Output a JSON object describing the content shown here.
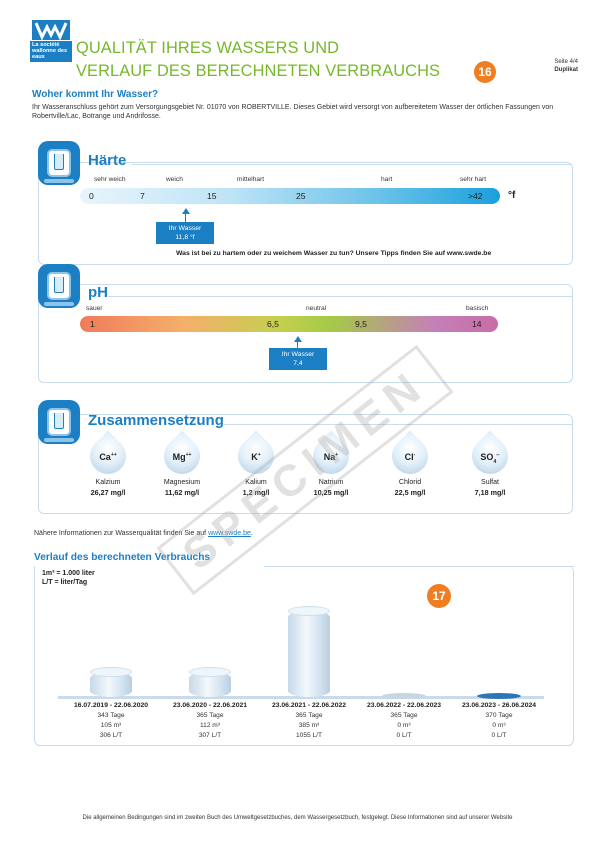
{
  "header": {
    "logo_text": "La société wallonne des eaux",
    "title_line1": "QUALITÄT IHRES WASSERS UND",
    "title_line2": "VERLAUF DES BERECHNETEN VERBRAUCHS",
    "badge": "16",
    "page": "Seite 4/4",
    "copy": "Duplikat"
  },
  "intro": {
    "heading": "Woher kommt Ihr Wasser?",
    "text": "Ihr Wasseranschluss gehört zum Versorgungsgebiet Nr. 01070 von ROBERTVILLE. Dieses Gebiet wird versorgt von aufbereitetem Wasser der örtlichen Fassungen von Robertville/Lac, Botrange und Andrifosse."
  },
  "haerte": {
    "title": "Härte",
    "labels": [
      "sehr weich",
      "weich",
      "mittelhart",
      "hart",
      "sehr hart"
    ],
    "numbers": [
      "0",
      "7",
      "15",
      "25",
      ">42"
    ],
    "unit": "°f",
    "marker_line1": "Ihr Wasser",
    "marker_line2": "11,8 °f",
    "tip": "Was ist bei zu hartem oder zu weichem Wasser zu tun? Unsere Tipps finden Sie auf www.swde.be"
  },
  "ph": {
    "title": "pH",
    "labels": [
      "sauer",
      "neutral",
      "basisch"
    ],
    "numbers": [
      "1",
      "6,5",
      "9,5",
      "14"
    ],
    "marker_line1": "Ihr Wasser",
    "marker_line2": "7,4"
  },
  "zus": {
    "title": "Zusammensetzung",
    "items": [
      {
        "sym": "Ca",
        "sup": "++",
        "name": "Kalzium",
        "value": "26,27 mg/l"
      },
      {
        "sym": "Mg",
        "sup": "++",
        "name": "Magnesium",
        "value": "11,62 mg/l"
      },
      {
        "sym": "K",
        "sup": "+",
        "name": "Kalium",
        "value": "1,2 mg/l"
      },
      {
        "sym": "Na",
        "sup": "+",
        "name": "Natrium",
        "value": "10,25 mg/l"
      },
      {
        "sym": "Cl",
        "sup": "-",
        "name": "Chlorid",
        "value": "22,5 mg/l"
      },
      {
        "sym": "SO",
        "sub": "4",
        "sup": "--",
        "name": "Sulfat",
        "value": "7,18 mg/l"
      }
    ]
  },
  "more": {
    "text": "Nähere Informationen zur Wasserqualität finden Sie auf ",
    "link": "www.swde.be",
    "tail": "."
  },
  "verlauf": {
    "title": "Verlauf des berechneten Verbrauchs",
    "unit_line1": "1m³ = 1.000 liter",
    "unit_line2": "L/T = liter/Tag",
    "badge": "17",
    "periods": [
      {
        "period": "16.07.2019 - 22.06.2020",
        "tage": "343 Tage",
        "m3": "105 m³",
        "lt": "306 L/T",
        "value": 306
      },
      {
        "period": "23.06.2020 - 22.06.2021",
        "tage": "365 Tage",
        "m3": "112 m³",
        "lt": "307 L/T",
        "value": 307
      },
      {
        "period": "23.06.2021 - 22.06.2022",
        "tage": "365 Tage",
        "m3": "385 m³",
        "lt": "1055 L/T",
        "value": 1055
      },
      {
        "period": "23.06.2022 - 22.06.2023",
        "tage": "365 Tage",
        "m3": "0 m³",
        "lt": "0 L/T",
        "value": 0
      },
      {
        "period": "23.06.2023 - 26.06.2024",
        "tage": "370 Tage",
        "m3": "0 m³",
        "lt": "0 L/T",
        "value": 0
      }
    ]
  },
  "footer": "Die allgemeinen Bedingungen sind im zweiten Buch des Umweltgesetzbuches, dem Wassergesetzbuch, festgelegt. Diese Informationen sind auf unserer Website",
  "watermark": "SPECIMEN",
  "colors": {
    "brand_blue": "#1c7fc3",
    "green": "#76b82a",
    "orange": "#ef7d22"
  }
}
